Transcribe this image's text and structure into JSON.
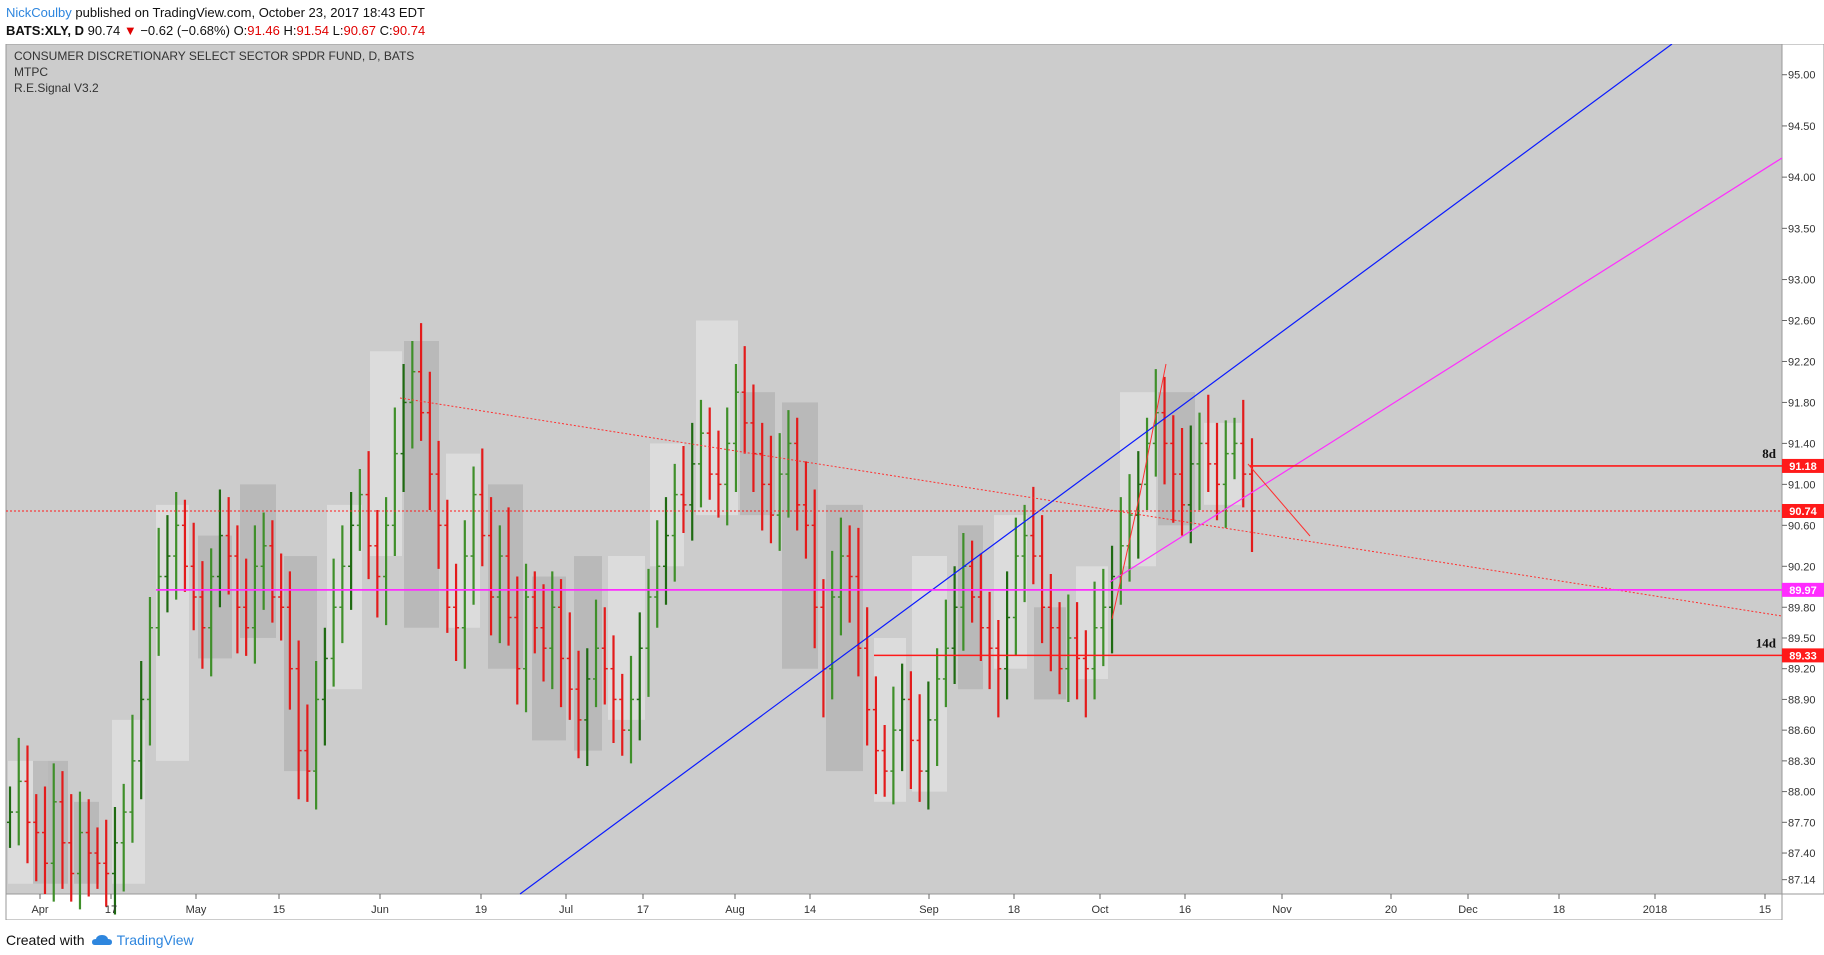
{
  "header": {
    "author": "NickCoulby",
    "published": "published on TradingView.com, October 23, 2017 18:43 EDT",
    "symbol": "BATS:XLY, D",
    "last": "90.74",
    "change": "−0.62 (−0.68%)",
    "o_label": "O:",
    "o_value": "91.46",
    "h_label": "H:",
    "h_value": "91.54",
    "l_label": "L:",
    "l_value": "90.67",
    "c_label": "C:",
    "c_value": "90.74"
  },
  "legend": {
    "title": "CONSUMER DISCRETIONARY SELECT SECTOR SPDR FUND, D, BATS",
    "line2": "MTPC",
    "line3": "R.E.Signal V3.2"
  },
  "footer": {
    "created_with": "Created with",
    "brand": "TradingView"
  },
  "colors": {
    "up": "#3f8f2a",
    "up_dark": "#1f6a12",
    "down": "#e31b1b",
    "blue": "#0a1aff",
    "magenta": "#ff2cff",
    "level": "#ff1a1a",
    "bg": "#cccccc"
  },
  "chart_data": {
    "type": "ohlc",
    "title": "CONSUMER DISCRETIONARY SELECT SECTOR SPDR FUND, D, BATS",
    "ylim": [
      87.0,
      95.3
    ],
    "y_ticks": [
      87.14,
      87.4,
      87.7,
      88.0,
      88.3,
      88.6,
      88.9,
      89.2,
      89.5,
      89.8,
      90.2,
      90.6,
      91.0,
      91.4,
      91.8,
      92.2,
      92.6,
      93.0,
      93.5,
      94.0,
      94.5,
      95.0
    ],
    "x_ticks": [
      "Apr",
      "17",
      "May",
      "15",
      "Jun",
      "19",
      "Jul",
      "17",
      "Aug",
      "14",
      "Sep",
      "18",
      "Oct",
      "16",
      "Nov",
      "20",
      "Dec",
      "18",
      "2018",
      "15"
    ],
    "bar_closes": [
      87.8,
      88.1,
      87.7,
      87.6,
      87.3,
      87.9,
      87.5,
      87.2,
      87.6,
      87.4,
      87.3,
      87.2,
      87.5,
      87.8,
      88.3,
      88.9,
      89.6,
      90.1,
      90.3,
      90.6,
      90.2,
      89.9,
      89.6,
      90.1,
      90.5,
      90.3,
      89.8,
      89.6,
      90.2,
      90.4,
      89.9,
      89.8,
      89.2,
      88.4,
      88.2,
      88.9,
      89.3,
      89.8,
      90.2,
      90.6,
      90.9,
      90.4,
      90.1,
      90.6,
      91.3,
      91.8,
      92.1,
      91.7,
      91.1,
      90.6,
      89.8,
      89.6,
      90.3,
      90.9,
      90.5,
      89.9,
      90.3,
      89.7,
      89.2,
      89.9,
      89.6,
      89.4,
      89.8,
      89.3,
      89.0,
      88.7,
      89.1,
      89.4,
      89.2,
      88.9,
      88.6,
      88.9,
      89.4,
      89.9,
      90.2,
      90.5,
      90.9,
      90.8,
      91.2,
      91.5,
      91.1,
      91.0,
      91.4,
      91.9,
      91.6,
      91.3,
      91.0,
      90.7,
      91.1,
      91.4,
      90.8,
      90.6,
      89.8,
      89.2,
      89.9,
      90.3,
      90.1,
      89.4,
      88.8,
      88.4,
      88.2,
      88.6,
      88.9,
      88.5,
      88.2,
      88.7,
      89.1,
      89.4,
      89.8,
      90.2,
      89.9,
      89.6,
      89.4,
      89.2,
      89.7,
      90.3,
      90.5,
      90.3,
      89.8,
      89.6,
      89.2,
      89.5,
      89.3,
      89.2,
      89.6,
      89.8,
      90.1,
      90.4,
      90.7,
      91.0,
      91.4,
      91.7,
      91.4,
      91.1,
      90.8,
      91.2,
      91.4,
      91.2,
      91.0,
      91.3,
      91.4,
      91.1,
      90.74
    ],
    "levels": [
      {
        "label": "91.18",
        "value": 91.18,
        "tag": "8d"
      },
      {
        "label": "90.74",
        "value": 90.74
      },
      {
        "label": "89.97",
        "value": 89.97
      },
      {
        "label": "89.33",
        "value": 89.33,
        "tag": "14d"
      }
    ]
  }
}
